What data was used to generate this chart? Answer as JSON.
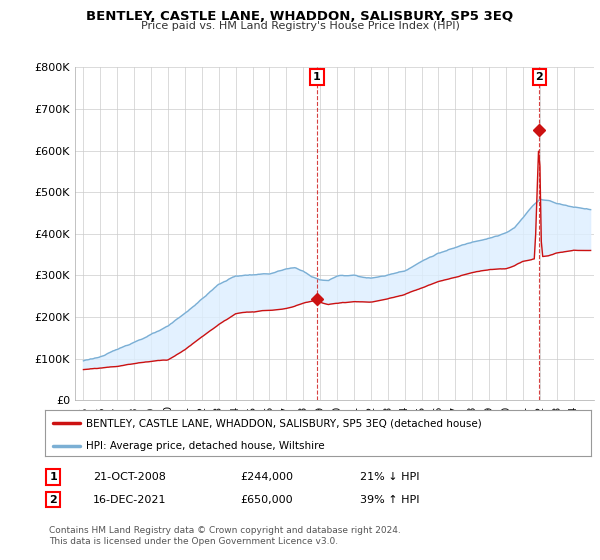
{
  "title": "BENTLEY, CASTLE LANE, WHADDON, SALISBURY, SP5 3EQ",
  "subtitle": "Price paid vs. HM Land Registry's House Price Index (HPI)",
  "ylabel_ticks": [
    "£0",
    "£100K",
    "£200K",
    "£300K",
    "£400K",
    "£500K",
    "£600K",
    "£700K",
    "£800K"
  ],
  "ytick_values": [
    0,
    100000,
    200000,
    300000,
    400000,
    500000,
    600000,
    700000,
    800000
  ],
  "ylim": [
    0,
    800000
  ],
  "xlim_start": 1994.5,
  "xlim_end": 2025.2,
  "hpi_color": "#7bafd4",
  "price_color": "#cc1111",
  "fill_color": "#ddeeff",
  "marker1_x": 2008.81,
  "marker1_y": 244000,
  "marker2_x": 2021.96,
  "marker2_y": 650000,
  "legend_label_red": "BENTLEY, CASTLE LANE, WHADDON, SALISBURY, SP5 3EQ (detached house)",
  "legend_label_blue": "HPI: Average price, detached house, Wiltshire",
  "table_row1": [
    "1",
    "21-OCT-2008",
    "£244,000",
    "21% ↓ HPI"
  ],
  "table_row2": [
    "2",
    "16-DEC-2021",
    "£650,000",
    "39% ↑ HPI"
  ],
  "footnote": "Contains HM Land Registry data © Crown copyright and database right 2024.\nThis data is licensed under the Open Government Licence v3.0.",
  "background_color": "#ffffff",
  "grid_color": "#cccccc"
}
